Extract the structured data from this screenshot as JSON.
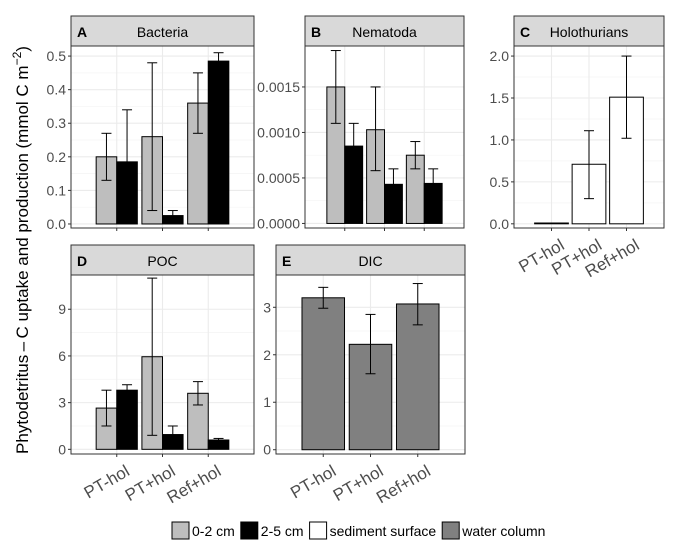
{
  "y_axis_label_main": "Phytodetritus – C uptake and production (mmol C m",
  "y_axis_label_exp": "−2",
  "y_axis_label_close": ")",
  "colors": {
    "0-2 cm": "#bebebe",
    "2-5 cm": "#000000",
    "sediment surface": "#ffffff",
    "water column": "#808080",
    "strip": "#d9d9d9",
    "grid": "#ebebeb"
  },
  "legend": {
    "position": "bottom",
    "items": [
      {
        "label": "0-2 cm",
        "key": "0-2 cm"
      },
      {
        "label": "2-5 cm",
        "key": "2-5 cm"
      },
      {
        "label": "sediment surface",
        "key": "sediment surface"
      },
      {
        "label": "water column",
        "key": "water column"
      }
    ]
  },
  "chart_data": [
    {
      "panel": "A",
      "title": "Bacteria",
      "type": "bar",
      "categories": [
        "PT-hol",
        "PT+hol",
        "Ref+hol"
      ],
      "ylim": [
        -0.012,
        0.53
      ],
      "yticks": [
        0.0,
        0.1,
        0.2,
        0.3,
        0.4,
        0.5
      ],
      "ytick_labels": [
        "0.0",
        "0.1",
        "0.2",
        "0.3",
        "0.4",
        "0.5"
      ],
      "show_x_labels": false,
      "series": [
        {
          "name": "0-2 cm",
          "values": [
            0.2,
            0.26,
            0.36
          ],
          "err_low": [
            0.13,
            0.04,
            0.27
          ],
          "err_high": [
            0.27,
            0.48,
            0.45
          ]
        },
        {
          "name": "2-5 cm",
          "values": [
            0.185,
            0.025,
            0.485
          ],
          "err_low": [
            0.03,
            0.01,
            0.46
          ],
          "err_high": [
            0.34,
            0.04,
            0.51
          ]
        }
      ]
    },
    {
      "panel": "B",
      "title": "Nematoda",
      "type": "bar",
      "categories": [
        "PT-hol",
        "PT+hol",
        "Ref+hol"
      ],
      "ylim": [
        -5e-05,
        0.00195
      ],
      "yticks": [
        0.0,
        0.0005,
        0.001,
        0.0015
      ],
      "ytick_labels": [
        "0.0000",
        "0.0005",
        "0.0010",
        "0.0015"
      ],
      "show_x_labels": false,
      "series": [
        {
          "name": "0-2 cm",
          "values": [
            0.0015,
            0.00103,
            0.00075
          ],
          "err_low": [
            0.0011,
            0.00058,
            0.0006
          ],
          "err_high": [
            0.0019,
            0.0015,
            0.0009
          ]
        },
        {
          "name": "2-5 cm",
          "values": [
            0.00085,
            0.00043,
            0.00044
          ],
          "err_low": [
            0.0006,
            0.00027,
            0.00029
          ],
          "err_high": [
            0.0011,
            0.0006,
            0.0006
          ]
        }
      ]
    },
    {
      "panel": "C",
      "title": "Holothurians",
      "type": "bar",
      "categories": [
        "PT-hol",
        "PT+hol",
        "Ref+hol"
      ],
      "ylim": [
        -0.05,
        2.12
      ],
      "yticks": [
        0.0,
        0.5,
        1.0,
        1.5,
        2.0
      ],
      "ytick_labels": [
        "0.0",
        "0.5",
        "1.0",
        "1.5",
        "2.0"
      ],
      "show_x_labels": true,
      "series": [
        {
          "name": "sediment surface",
          "values": [
            0.0,
            0.71,
            1.51
          ],
          "err_low": [
            null,
            0.3,
            1.02
          ],
          "err_high": [
            null,
            1.11,
            2.0
          ]
        }
      ]
    },
    {
      "panel": "D",
      "title": "POC",
      "type": "bar",
      "categories": [
        "PT-hol",
        "PT+hol",
        "Ref+hol"
      ],
      "ylim": [
        -0.3,
        11.2
      ],
      "yticks": [
        0,
        3,
        6,
        9
      ],
      "ytick_labels": [
        "0",
        "3",
        "6",
        "9"
      ],
      "show_x_labels": true,
      "series": [
        {
          "name": "0-2 cm",
          "values": [
            2.65,
            5.95,
            3.6
          ],
          "err_low": [
            1.5,
            0.9,
            2.85
          ],
          "err_high": [
            3.8,
            11.0,
            4.35
          ]
        },
        {
          "name": "2-5 cm",
          "values": [
            3.8,
            0.95,
            0.6
          ],
          "err_low": [
            3.45,
            0.45,
            0.5
          ],
          "err_high": [
            4.15,
            1.5,
            0.7
          ]
        }
      ]
    },
    {
      "panel": "E",
      "title": "DIC",
      "type": "bar",
      "categories": [
        "PT-hol",
        "PT+hol",
        "Ref+hol"
      ],
      "ylim": [
        -0.09,
        3.68
      ],
      "yticks": [
        0,
        1,
        2,
        3
      ],
      "ytick_labels": [
        "0",
        "1",
        "2",
        "3"
      ],
      "show_x_labels": true,
      "series": [
        {
          "name": "water column",
          "values": [
            3.2,
            2.22,
            3.07
          ],
          "err_low": [
            2.98,
            1.6,
            2.63
          ],
          "err_high": [
            3.42,
            2.85,
            3.5
          ]
        }
      ]
    }
  ]
}
